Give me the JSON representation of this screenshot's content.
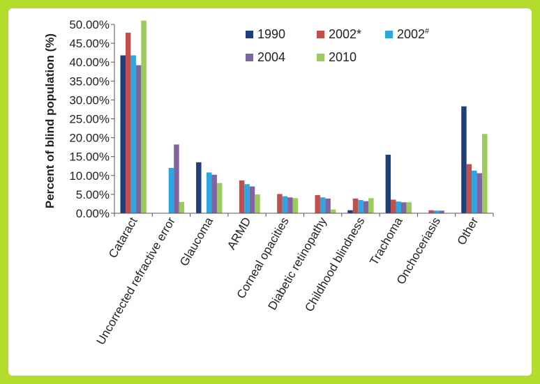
{
  "chart_data": {
    "type": "bar",
    "ylabel": "Percent of blind population (%)",
    "ylim": [
      0,
      0.5
    ],
    "y_tick_step": 0.05,
    "y_tick_format": "percent_2dp",
    "grid": false,
    "legend_position": "top-right",
    "categories": [
      "Cataract",
      "Uncorrected refractive error",
      "Glaucoma",
      "ARMD",
      "Corneal opacities",
      "Diabetic retinopathy",
      "Childhood blindness",
      "Trachoma",
      "Onchoceriasis",
      "Other"
    ],
    "series": [
      {
        "name": "1990",
        "color": "#1f3f7a",
        "values": [
          0.418,
          null,
          0.135,
          null,
          null,
          null,
          0.008,
          0.155,
          null,
          0.283
        ]
      },
      {
        "name": "2002*",
        "color": "#c0504d",
        "values": [
          0.478,
          null,
          null,
          0.087,
          0.051,
          0.048,
          0.039,
          0.036,
          0.008,
          0.13
        ]
      },
      {
        "name": "2002#",
        "color": "#2ea7e0",
        "values": [
          0.418,
          0.12,
          0.108,
          0.077,
          0.045,
          0.042,
          0.035,
          0.031,
          0.007,
          0.113
        ]
      },
      {
        "name": "2004",
        "color": "#8064a2",
        "values": [
          0.392,
          0.182,
          0.102,
          0.071,
          0.042,
          0.039,
          0.032,
          0.029,
          0.007,
          0.106
        ]
      },
      {
        "name": "2010",
        "color": "#9bcb5b",
        "values": [
          0.51,
          0.03,
          0.08,
          0.05,
          0.04,
          0.01,
          0.04,
          0.029,
          null,
          0.21
        ]
      }
    ]
  }
}
